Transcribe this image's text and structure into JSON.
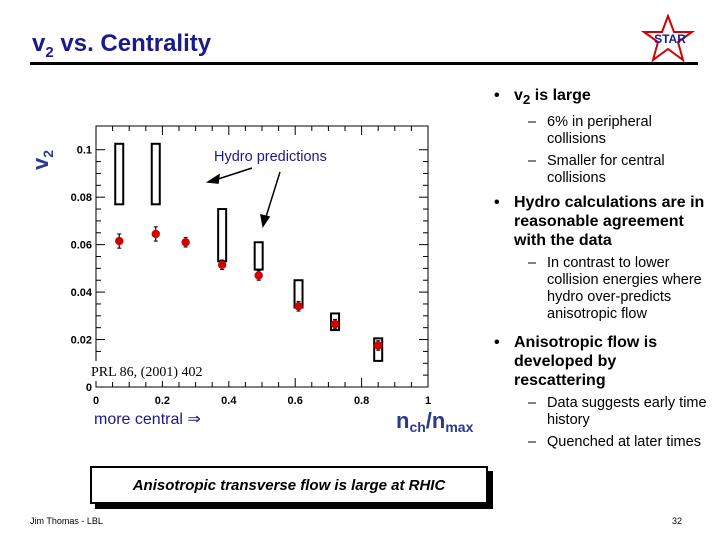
{
  "header": {
    "title_main": "v",
    "title_sub": "2",
    "title_rest": " vs. Centrality",
    "logo_text": "STAR"
  },
  "chart_data": {
    "type": "scatter",
    "x_axis": {
      "label_main": "n",
      "label_sub1": "ch",
      "label_mid": "/n",
      "label_sub2": "max",
      "range": [
        0,
        1
      ],
      "ticks": [
        0,
        0.2,
        0.4,
        0.6,
        0.8,
        1
      ],
      "tick_labels": [
        "0",
        "0.2",
        "0.4",
        "0.6",
        "0.8",
        "1"
      ]
    },
    "y_axis": {
      "label_main": "v",
      "label_sub": "2",
      "range": [
        0,
        0.11
      ],
      "ticks": [
        0,
        0.02,
        0.04,
        0.06,
        0.08,
        0.1
      ],
      "tick_labels": [
        "0",
        "0.02",
        "0.04",
        "0.06",
        "0.08",
        "0.1"
      ]
    },
    "series": [
      {
        "name": "data",
        "marker": "filled-circle",
        "color": "#d40000",
        "x": [
          0.07,
          0.18,
          0.27,
          0.38,
          0.49,
          0.61,
          0.72,
          0.85
        ],
        "y": [
          0.0615,
          0.0645,
          0.061,
          0.0515,
          0.047,
          0.034,
          0.0265,
          0.0175
        ],
        "yerr": [
          0.003,
          0.003,
          0.002,
          0.002,
          0.002,
          0.002,
          0.002,
          0.002
        ]
      },
      {
        "marker": "open-box",
        "x": [
          0.07,
          0.18,
          0.38,
          0.49,
          0.61,
          0.72,
          0.85
        ],
        "y_low": [
          0.077,
          0.077,
          0.053,
          0.0495,
          0.0335,
          0.024,
          0.011
        ],
        "y_high": [
          0.1025,
          0.1025,
          0.075,
          0.061,
          0.045,
          0.031,
          0.0205
        ]
      }
    ],
    "annotations": {
      "hydro": "Hydro predictions",
      "reference": "PRL 86, (2001) 402",
      "direction": "more central ⇒"
    }
  },
  "bullets": [
    {
      "main": "v",
      "sub": "2",
      "rest": " is large",
      "subs": [
        "6% in peripheral collisions",
        "Smaller for central collisions"
      ]
    },
    {
      "main": "Hydro calculations are in reasonable agreement with the data",
      "subs": [
        "In contrast to lower collision energies where hydro over-predicts anisotropic flow"
      ]
    },
    {
      "main": "Anisotropic flow is developed by rescattering",
      "subs": [
        "Data suggests early time history",
        "Quenched at later times"
      ]
    }
  ],
  "conclusion": "Anisotropic transverse flow is large at RHIC",
  "footer": {
    "author": "Jim Thomas - LBL",
    "page": "32"
  },
  "colors": {
    "title": "#1a1a8c",
    "axis_label": "#2a3a8c",
    "annotation": "#1a1a8c",
    "data_marker": "#d40000",
    "logo_star": "#d40000"
  }
}
